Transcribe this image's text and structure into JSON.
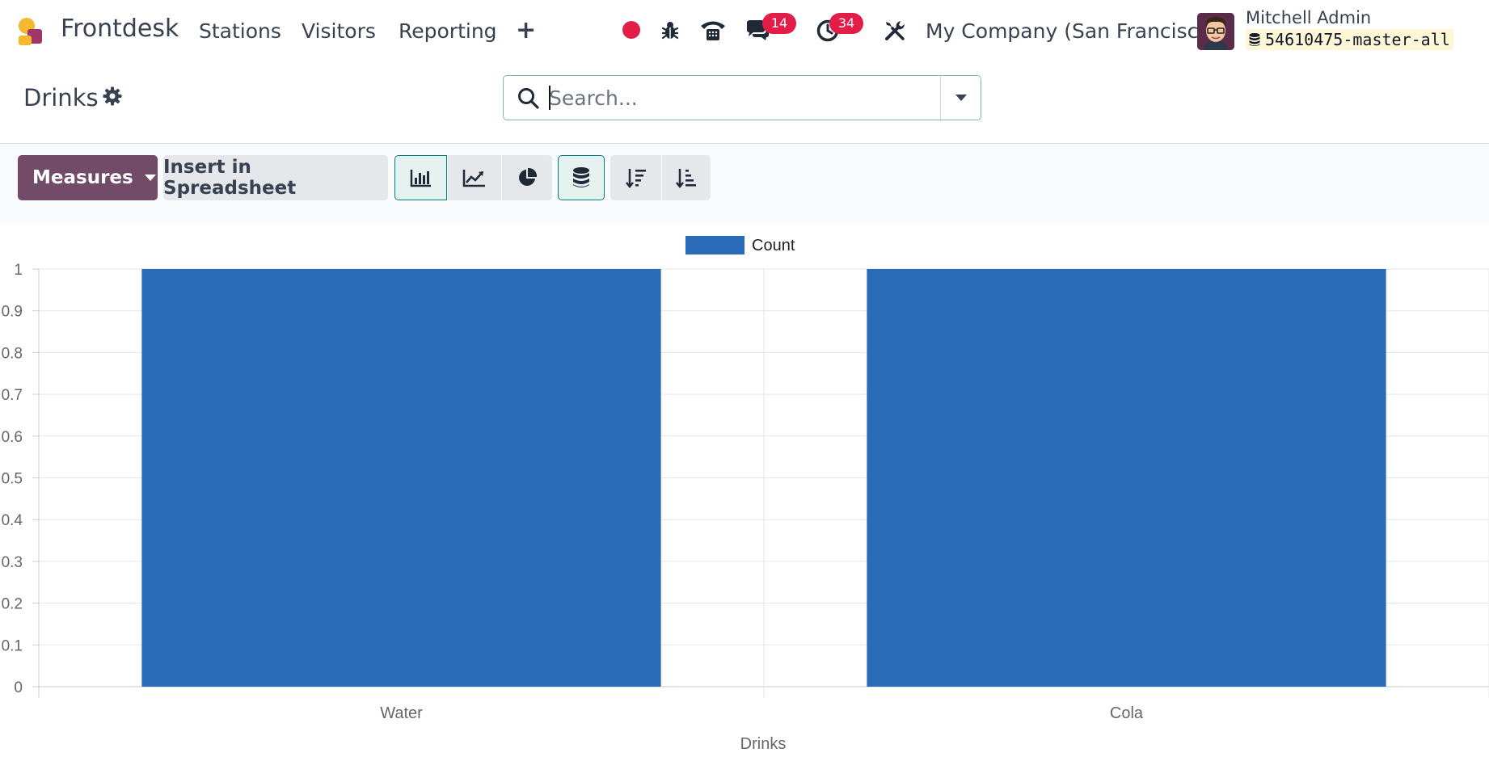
{
  "navbar": {
    "app_name": "Frontdesk",
    "menu": [
      "Stations",
      "Visitors",
      "Reporting"
    ],
    "plus": "+",
    "messages_badge": "14",
    "activities_badge": "34",
    "company": "My Company (San Francisco)",
    "user_name": "Mitchell Admin",
    "database": "54610475-master-all",
    "icons": [
      "record-dot-icon",
      "bug-icon",
      "phone-icon",
      "chat-icon",
      "clock-icon",
      "tools-icon"
    ]
  },
  "control_panel": {
    "breadcrumb": "Drinks",
    "search_placeholder": "Search..."
  },
  "toolbar": {
    "measures_label": "Measures",
    "insert_label": "Insert in Spreadsheet",
    "chart_types": [
      "bar-chart",
      "line-chart",
      "pie-chart"
    ],
    "active_chart_type": "bar-chart",
    "stacked": true,
    "sort": [
      "descending",
      "ascending"
    ]
  },
  "colors": {
    "brand": "#714b67",
    "bar": "#2a6bb8",
    "badge": "#e11d48"
  },
  "chart_data": {
    "type": "bar",
    "categories": [
      "Water",
      "Cola"
    ],
    "series": [
      {
        "name": "Count",
        "values": [
          1,
          1
        ]
      }
    ],
    "xlabel": "Drinks",
    "ylabel": "",
    "ylim": [
      0,
      1
    ],
    "yticks": [
      "0",
      "0.1",
      "0.2",
      "0.3",
      "0.4",
      "0.5",
      "0.6",
      "0.7",
      "0.8",
      "0.9",
      "1"
    ],
    "grid": true,
    "legend": "top-center"
  }
}
